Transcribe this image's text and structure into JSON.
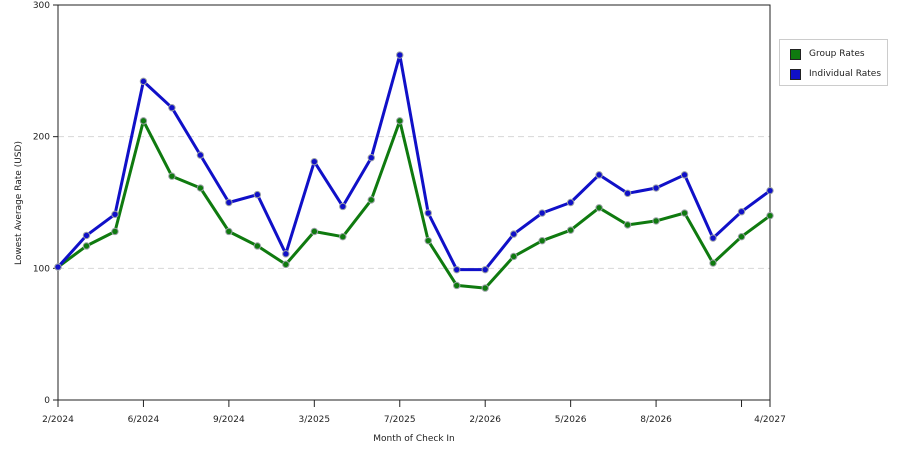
{
  "chart_data": {
    "type": "line",
    "title": "",
    "xlabel": "Month of Check In",
    "ylabel": "Lowest Average Rate (USD)",
    "ylim": [
      0,
      300
    ],
    "yticks": [
      0,
      100,
      200,
      300
    ],
    "grid": true,
    "legend_position": "top-right",
    "x_tick_labels": [
      {
        "index": 0,
        "label": "2/2024"
      },
      {
        "index": 3,
        "label": "6/2024"
      },
      {
        "index": 6,
        "label": "9/2024"
      },
      {
        "index": 9,
        "label": "3/2025"
      },
      {
        "index": 12,
        "label": "7/2025"
      },
      {
        "index": 15,
        "label": "2/2026"
      },
      {
        "index": 18,
        "label": "5/2026"
      },
      {
        "index": 21,
        "label": "8/2026"
      },
      {
        "index": 24,
        "label": ""
      },
      {
        "index": 25,
        "label": "4/2027"
      }
    ],
    "series": [
      {
        "name": "Group Rates",
        "color": "#0f7a0f",
        "values": [
          101,
          117,
          128,
          212,
          170,
          161,
          128,
          117,
          103,
          128,
          124,
          152,
          212,
          121,
          87,
          85,
          109,
          121,
          129,
          146,
          133,
          136,
          142,
          104,
          124,
          140
        ]
      },
      {
        "name": "Individual Rates",
        "color": "#1010c8",
        "values": [
          101,
          125,
          141,
          242,
          222,
          186,
          150,
          156,
          111,
          181,
          147,
          184,
          262,
          142,
          99,
          99,
          126,
          142,
          150,
          171,
          157,
          161,
          171,
          123,
          143,
          159
        ]
      }
    ]
  }
}
